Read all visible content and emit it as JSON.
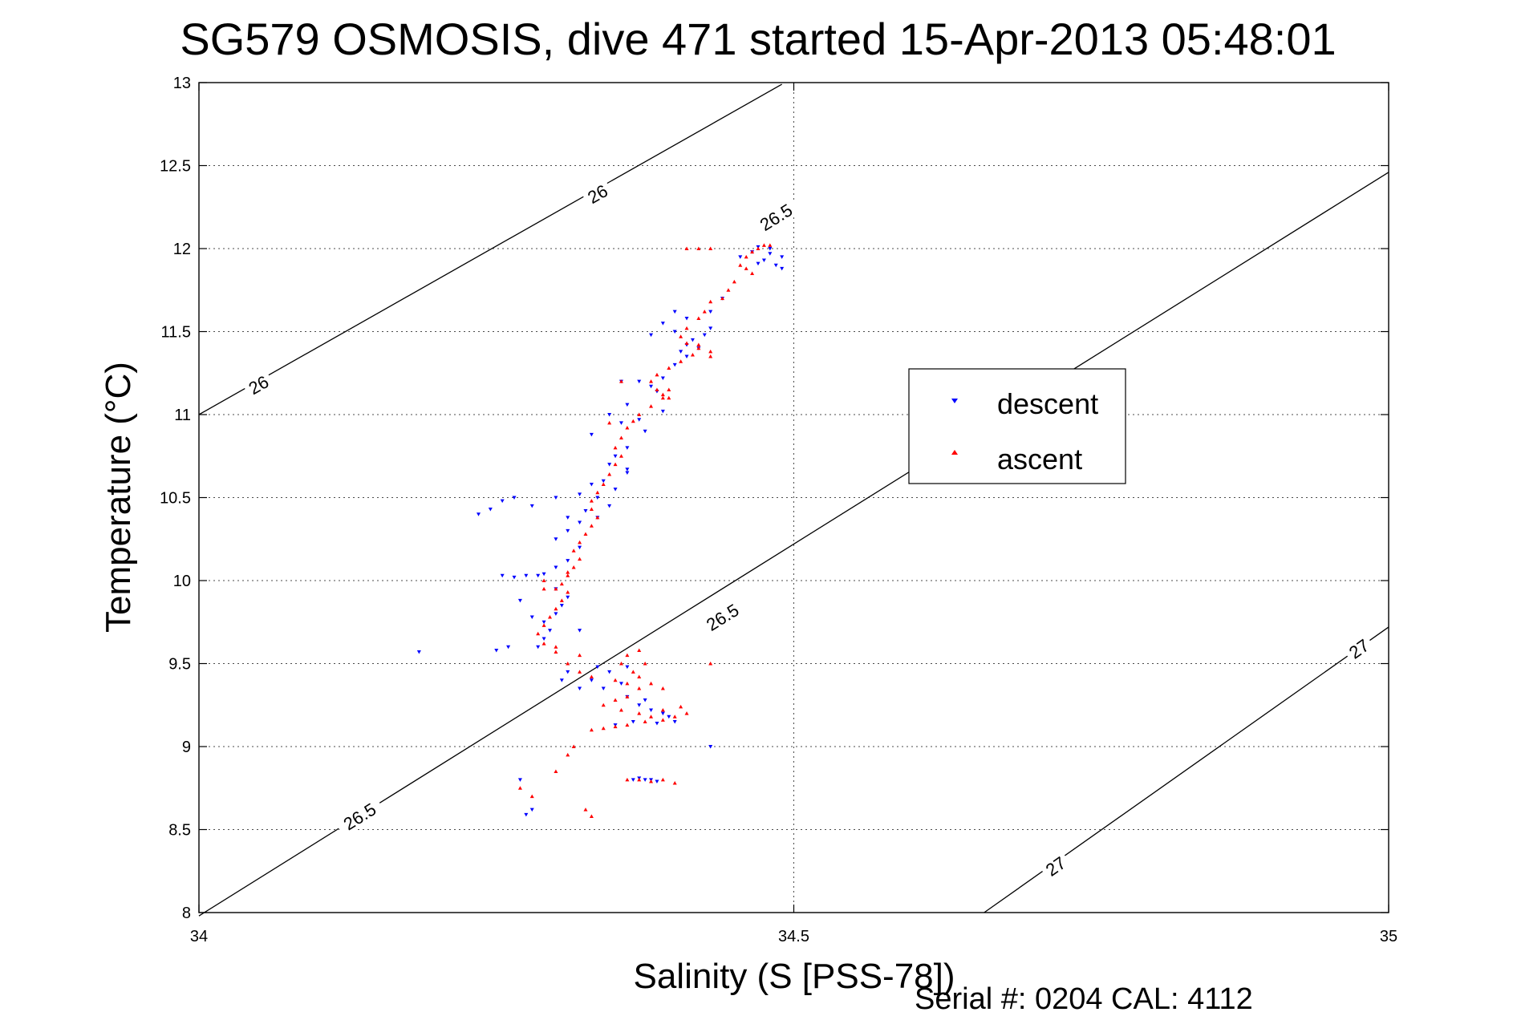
{
  "chart_data": {
    "type": "scatter",
    "title": "SG579 OSMOSIS, dive 471 started 15-Apr-2013 05:48:01",
    "xlabel": "Salinity (S [PSS-78])",
    "ylabel": "Temperature (°C)",
    "xlim": [
      34,
      35
    ],
    "ylim": [
      8,
      13
    ],
    "x_ticks": [
      "34",
      "34.5",
      "35"
    ],
    "y_ticks": [
      "13",
      "12.5",
      "12",
      "11.5",
      "11",
      "10.5",
      "10",
      "9.5",
      "9",
      "8.5",
      "8"
    ],
    "grid": true,
    "legend_position": "right-center",
    "density_contours": [
      {
        "label": "26",
        "points": [
          [
            34.0,
            11.0
          ],
          [
            34.49,
            12.99
          ]
        ],
        "label_positions": [
          [
            34.335,
            12.33
          ],
          [
            34.05,
            11.18
          ]
        ]
      },
      {
        "label": "26.5",
        "points": [
          [
            34.0,
            7.98
          ],
          [
            35.0,
            12.46
          ]
        ],
        "label_positions": [
          [
            34.485,
            12.19
          ],
          [
            34.135,
            8.58
          ],
          [
            34.44,
            9.78
          ]
        ]
      },
      {
        "label": "27",
        "points": [
          [
            34.66,
            8.0
          ],
          [
            35.0,
            9.72
          ]
        ],
        "label_positions": [
          [
            34.72,
            8.28
          ],
          [
            34.975,
            9.59
          ]
        ]
      }
    ],
    "series": [
      {
        "name": "descent",
        "color": "#0000ff",
        "marker": "triangle-down",
        "points": [
          [
            34.47,
            12.01
          ],
          [
            34.48,
            12.0
          ],
          [
            34.49,
            11.95
          ],
          [
            34.485,
            11.9
          ],
          [
            34.49,
            11.88
          ],
          [
            34.465,
            11.98
          ],
          [
            34.455,
            11.95
          ],
          [
            34.475,
            11.93
          ],
          [
            34.48,
            11.97
          ],
          [
            34.47,
            11.91
          ],
          [
            34.44,
            11.7
          ],
          [
            34.43,
            11.62
          ],
          [
            34.43,
            11.52
          ],
          [
            34.425,
            11.48
          ],
          [
            34.415,
            11.45
          ],
          [
            34.41,
            11.42
          ],
          [
            34.405,
            11.38
          ],
          [
            34.42,
            11.4
          ],
          [
            34.41,
            11.35
          ],
          [
            34.4,
            11.5
          ],
          [
            34.39,
            11.55
          ],
          [
            34.41,
            11.58
          ],
          [
            34.4,
            11.3
          ],
          [
            34.39,
            11.22
          ],
          [
            34.38,
            11.17
          ],
          [
            34.37,
            11.2
          ],
          [
            34.385,
            11.14
          ],
          [
            34.36,
            11.06
          ],
          [
            34.39,
            11.02
          ],
          [
            34.37,
            10.97
          ],
          [
            34.355,
            10.95
          ],
          [
            34.375,
            10.9
          ],
          [
            34.36,
            10.8
          ],
          [
            34.35,
            10.75
          ],
          [
            34.345,
            10.7
          ],
          [
            34.36,
            10.65
          ],
          [
            34.34,
            10.6
          ],
          [
            34.35,
            10.55
          ],
          [
            34.335,
            10.5
          ],
          [
            34.345,
            10.45
          ],
          [
            34.325,
            10.42
          ],
          [
            34.335,
            10.38
          ],
          [
            34.32,
            10.35
          ],
          [
            34.31,
            10.3
          ],
          [
            34.3,
            10.25
          ],
          [
            34.32,
            10.2
          ],
          [
            34.31,
            10.12
          ],
          [
            34.3,
            10.08
          ],
          [
            34.29,
            10.04
          ],
          [
            34.285,
            10.03
          ],
          [
            34.275,
            10.03
          ],
          [
            34.265,
            10.02
          ],
          [
            34.255,
            10.03
          ],
          [
            34.3,
            9.95
          ],
          [
            34.31,
            9.9
          ],
          [
            34.305,
            9.85
          ],
          [
            34.3,
            9.8
          ],
          [
            34.29,
            9.75
          ],
          [
            34.295,
            9.7
          ],
          [
            34.29,
            9.65
          ],
          [
            34.285,
            9.6
          ],
          [
            34.265,
            10.5
          ],
          [
            34.28,
            10.45
          ],
          [
            34.3,
            10.5
          ],
          [
            34.255,
            10.48
          ],
          [
            34.31,
            10.38
          ],
          [
            34.27,
            9.88
          ],
          [
            34.28,
            9.78
          ],
          [
            34.26,
            9.6
          ],
          [
            34.25,
            9.58
          ],
          [
            34.32,
            9.7
          ],
          [
            34.335,
            9.48
          ],
          [
            34.31,
            9.45
          ],
          [
            34.305,
            9.4
          ],
          [
            34.32,
            9.35
          ],
          [
            34.34,
            9.35
          ],
          [
            34.36,
            9.3
          ],
          [
            34.37,
            9.25
          ],
          [
            34.38,
            9.22
          ],
          [
            34.39,
            9.2
          ],
          [
            34.395,
            9.18
          ],
          [
            34.4,
            9.15
          ],
          [
            34.385,
            9.14
          ],
          [
            34.365,
            9.15
          ],
          [
            34.35,
            9.13
          ],
          [
            34.375,
            9.28
          ],
          [
            34.355,
            9.38
          ],
          [
            34.345,
            9.45
          ],
          [
            34.33,
            9.4
          ],
          [
            34.36,
            9.48
          ],
          [
            34.185,
            9.57
          ],
          [
            34.27,
            8.8
          ],
          [
            34.275,
            8.59
          ],
          [
            34.28,
            8.62
          ],
          [
            34.365,
            8.8
          ],
          [
            34.37,
            8.81
          ],
          [
            34.375,
            8.8
          ],
          [
            34.38,
            8.8
          ],
          [
            34.385,
            8.79
          ],
          [
            34.43,
            9.0
          ],
          [
            34.235,
            10.4
          ],
          [
            34.245,
            10.43
          ],
          [
            34.32,
            10.52
          ],
          [
            34.33,
            10.58
          ],
          [
            34.345,
            11.0
          ],
          [
            34.33,
            10.88
          ],
          [
            34.38,
            11.48
          ],
          [
            34.355,
            11.2
          ],
          [
            34.4,
            11.62
          ],
          [
            34.36,
            10.67
          ]
        ]
      },
      {
        "name": "ascent",
        "color": "#ff0000",
        "marker": "triangle-up",
        "points": [
          [
            34.48,
            12.02
          ],
          [
            34.475,
            12.02
          ],
          [
            34.47,
            12.0
          ],
          [
            34.465,
            11.98
          ],
          [
            34.46,
            11.95
          ],
          [
            34.455,
            11.9
          ],
          [
            34.46,
            11.88
          ],
          [
            34.465,
            11.85
          ],
          [
            34.45,
            11.8
          ],
          [
            34.445,
            11.75
          ],
          [
            34.44,
            11.7
          ],
          [
            34.43,
            11.68
          ],
          [
            34.425,
            11.62
          ],
          [
            34.42,
            11.58
          ],
          [
            34.41,
            11.52
          ],
          [
            34.405,
            11.47
          ],
          [
            34.41,
            11.43
          ],
          [
            34.42,
            11.42
          ],
          [
            34.43,
            11.38
          ],
          [
            34.415,
            11.36
          ],
          [
            34.405,
            11.32
          ],
          [
            34.395,
            11.28
          ],
          [
            34.385,
            11.24
          ],
          [
            34.38,
            11.2
          ],
          [
            34.385,
            11.15
          ],
          [
            34.39,
            11.12
          ],
          [
            34.395,
            11.1
          ],
          [
            34.38,
            11.05
          ],
          [
            34.37,
            11.0
          ],
          [
            34.365,
            10.96
          ],
          [
            34.36,
            10.92
          ],
          [
            34.355,
            10.86
          ],
          [
            34.35,
            10.8
          ],
          [
            34.355,
            10.75
          ],
          [
            34.35,
            10.7
          ],
          [
            34.345,
            10.64
          ],
          [
            34.34,
            10.58
          ],
          [
            34.335,
            10.53
          ],
          [
            34.33,
            10.48
          ],
          [
            34.33,
            10.43
          ],
          [
            34.335,
            10.38
          ],
          [
            34.33,
            10.33
          ],
          [
            34.325,
            10.28
          ],
          [
            34.32,
            10.23
          ],
          [
            34.315,
            10.18
          ],
          [
            34.32,
            10.13
          ],
          [
            34.315,
            10.08
          ],
          [
            34.31,
            10.03
          ],
          [
            34.305,
            9.98
          ],
          [
            34.31,
            9.93
          ],
          [
            34.305,
            9.88
          ],
          [
            34.3,
            9.83
          ],
          [
            34.295,
            9.78
          ],
          [
            34.29,
            9.73
          ],
          [
            34.285,
            9.68
          ],
          [
            34.29,
            9.62
          ],
          [
            34.3,
            9.57
          ],
          [
            34.32,
            9.55
          ],
          [
            34.31,
            9.5
          ],
          [
            34.32,
            9.45
          ],
          [
            34.33,
            9.42
          ],
          [
            34.35,
            9.4
          ],
          [
            34.36,
            9.38
          ],
          [
            34.365,
            9.45
          ],
          [
            34.355,
            9.5
          ],
          [
            34.36,
            9.55
          ],
          [
            34.37,
            9.58
          ],
          [
            34.375,
            9.5
          ],
          [
            34.37,
            9.42
          ],
          [
            34.38,
            9.38
          ],
          [
            34.37,
            9.35
          ],
          [
            34.36,
            9.3
          ],
          [
            34.35,
            9.28
          ],
          [
            34.34,
            9.25
          ],
          [
            34.355,
            9.22
          ],
          [
            34.37,
            9.2
          ],
          [
            34.38,
            9.18
          ],
          [
            34.39,
            9.16
          ],
          [
            34.4,
            9.18
          ],
          [
            34.41,
            9.2
          ],
          [
            34.405,
            9.24
          ],
          [
            34.39,
            9.22
          ],
          [
            34.375,
            9.15
          ],
          [
            34.36,
            9.13
          ],
          [
            34.35,
            9.12
          ],
          [
            34.34,
            9.11
          ],
          [
            34.33,
            9.1
          ],
          [
            34.39,
            9.35
          ],
          [
            34.43,
            9.5
          ],
          [
            34.315,
            9.0
          ],
          [
            34.31,
            8.95
          ],
          [
            34.3,
            8.85
          ],
          [
            34.27,
            8.75
          ],
          [
            34.28,
            8.7
          ],
          [
            34.325,
            8.62
          ],
          [
            34.33,
            8.58
          ],
          [
            34.36,
            8.8
          ],
          [
            34.37,
            8.8
          ],
          [
            34.38,
            8.79
          ],
          [
            34.39,
            8.8
          ],
          [
            34.4,
            8.78
          ],
          [
            34.29,
            10.0
          ],
          [
            34.31,
            10.05
          ],
          [
            34.3,
            9.95
          ],
          [
            34.42,
            11.4
          ],
          [
            34.43,
            11.35
          ],
          [
            34.395,
            11.15
          ],
          [
            34.39,
            11.1
          ],
          [
            34.41,
            12.0
          ],
          [
            34.42,
            12.0
          ],
          [
            34.43,
            12.0
          ],
          [
            34.355,
            11.2
          ],
          [
            34.345,
            10.95
          ],
          [
            34.29,
            9.95
          ],
          [
            34.3,
            9.6
          ]
        ]
      }
    ]
  },
  "legend": {
    "descent_label": "descent",
    "ascent_label": "ascent"
  },
  "footer_text": "Serial #: 0204  CAL: 4112"
}
